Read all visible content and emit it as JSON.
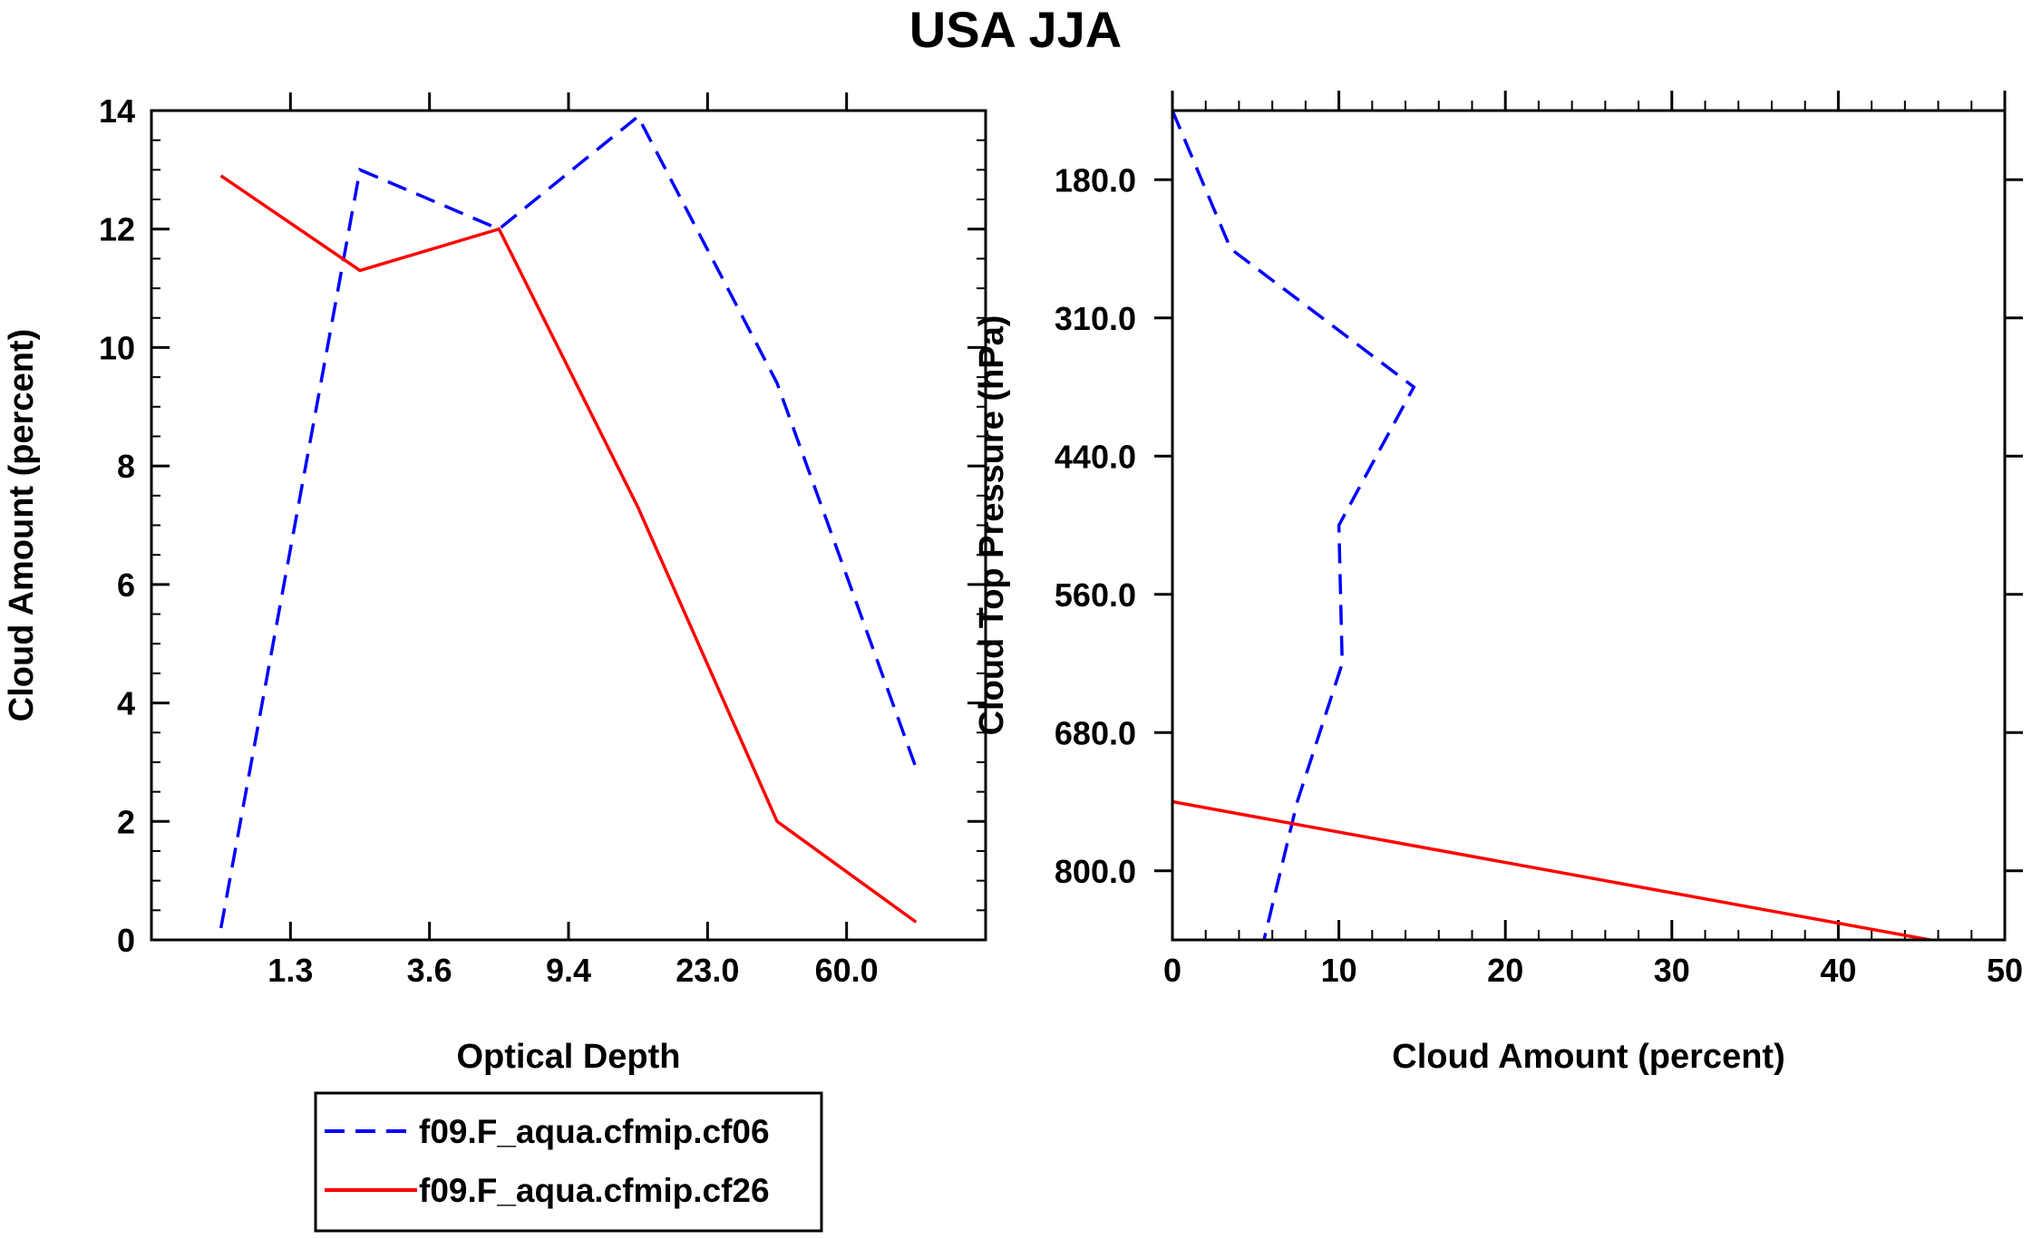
{
  "title": "USA JJA",
  "legend": {
    "entries": [
      {
        "label": "f09.F_aqua.cfmip.cf06",
        "color": "#0000ff",
        "dash": "dashed"
      },
      {
        "label": "f09.F_aqua.cfmip.cf26",
        "color": "#ff0000",
        "dash": "solid"
      }
    ]
  },
  "chart_data": [
    {
      "type": "line",
      "xlabel": "Optical Depth",
      "ylabel": "Cloud Amount (percent)",
      "x_bin_index": [
        0,
        1,
        2,
        3,
        4,
        5
      ],
      "xticklabels": [
        "1.3",
        "3.6",
        "9.4",
        "23.0",
        "60.0"
      ],
      "xtick_bins": [
        0.5,
        1.5,
        2.5,
        3.5,
        4.5
      ],
      "xlim": [
        -0.5,
        5.5
      ],
      "ylim": [
        0,
        14
      ],
      "yticks": [
        0,
        2,
        4,
        6,
        8,
        10,
        12,
        14
      ],
      "grid": false,
      "series": [
        {
          "name": "f09.F_aqua.cfmip.cf06",
          "color": "#0000ff",
          "dash": "dashed",
          "values": [
            0.2,
            13.0,
            12.0,
            13.9,
            9.4,
            2.9
          ]
        },
        {
          "name": "f09.F_aqua.cfmip.cf26",
          "color": "#ff0000",
          "dash": "solid",
          "values": [
            12.9,
            11.3,
            12.0,
            7.3,
            2.0,
            0.3
          ]
        }
      ]
    },
    {
      "type": "line",
      "xlabel": "Cloud Amount (percent)",
      "ylabel": "Cloud Top Pressure (hPa)",
      "xlim": [
        0,
        50
      ],
      "xticks": [
        0,
        10,
        20,
        30,
        40,
        50
      ],
      "yticklabels": [
        "180.0",
        "310.0",
        "440.0",
        "560.0",
        "680.0",
        "800.0"
      ],
      "ytick_bins": [
        0.5,
        1.5,
        2.5,
        3.5,
        4.5,
        5.5
      ],
      "ylim": [
        0,
        6
      ],
      "y_axis_inverted": true,
      "grid": false,
      "series": [
        {
          "name": "f09.F_aqua.cfmip.cf06",
          "color": "#0000ff",
          "dash": "dashed",
          "points": [
            [
              0.0,
              0.0
            ],
            [
              3.5,
              1.0
            ],
            [
              14.5,
              2.0
            ],
            [
              10.0,
              3.0
            ],
            [
              10.2,
              4.0
            ],
            [
              7.5,
              5.0
            ],
            [
              5.5,
              6.0
            ]
          ]
        },
        {
          "name": "f09.F_aqua.cfmip.cf26",
          "color": "#ff0000",
          "dash": "solid",
          "points": [
            [
              0.0,
              5.0
            ],
            [
              45.5,
              6.0
            ]
          ]
        }
      ]
    }
  ]
}
